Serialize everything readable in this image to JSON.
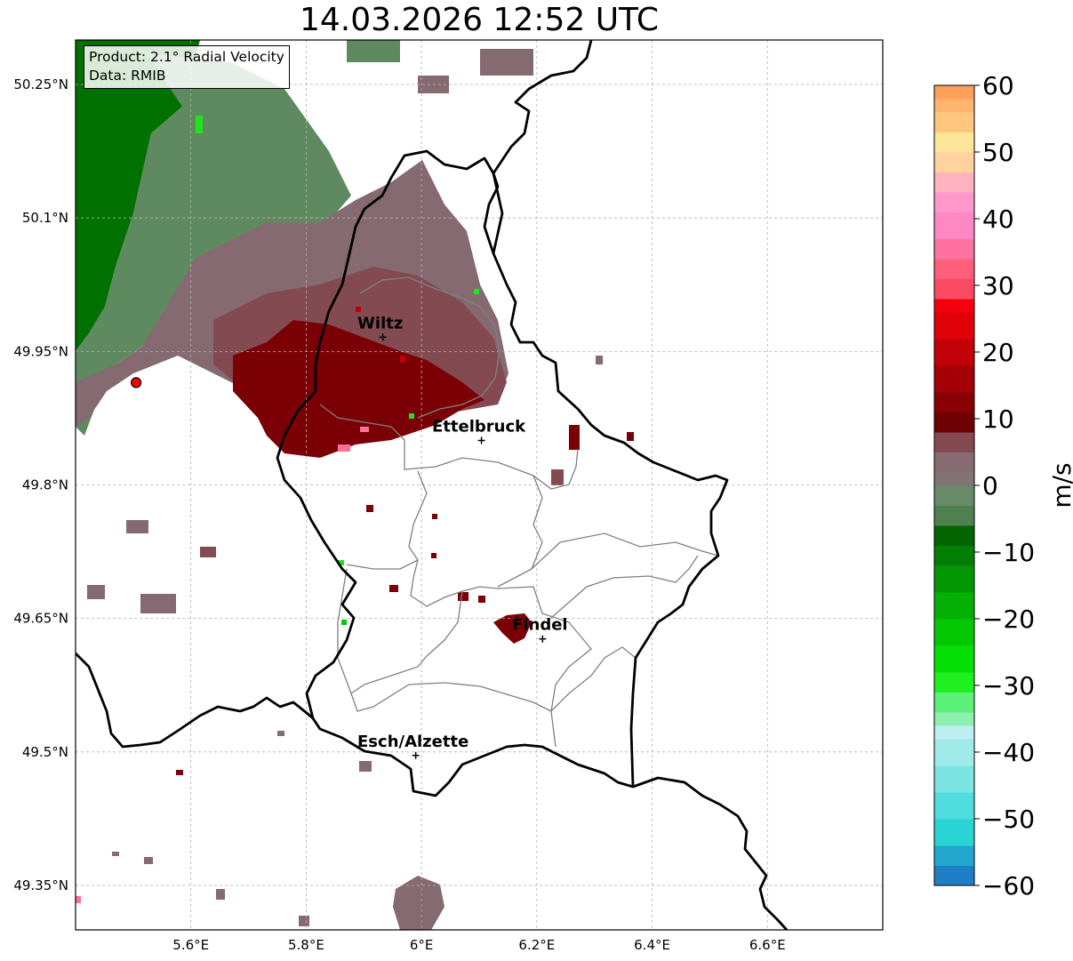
{
  "title": "14.03.2026 12:52 UTC",
  "info": {
    "product": "Product: 2.1° Radial Velocity",
    "source": "Data: RMIB"
  },
  "map": {
    "lon_range": [
      5.4,
      6.8
    ],
    "lat_range": [
      49.3,
      50.3
    ],
    "lon_ticks": [
      "5.6°E",
      "5.8°E",
      "6°E",
      "6.2°E",
      "6.4°E",
      "6.6°E"
    ],
    "lon_tick_values": [
      5.6,
      5.8,
      6.0,
      6.2,
      6.4,
      6.6
    ],
    "lat_ticks": [
      "50.25°N",
      "50.1°N",
      "49.95°N",
      "49.8°N",
      "49.65°N",
      "49.5°N",
      "49.35°N"
    ],
    "lat_tick_values": [
      50.25,
      50.1,
      49.95,
      49.8,
      49.65,
      49.5,
      49.35
    ],
    "radar_site": {
      "lon": 5.505,
      "lat": 49.915
    },
    "cities": [
      {
        "name": "Wiltz",
        "lon": 5.933,
        "lat": 49.966
      },
      {
        "name": "Ettelbruck",
        "lon": 6.104,
        "lat": 49.85
      },
      {
        "name": "Findel",
        "lon": 6.21,
        "lat": 49.627
      },
      {
        "name": "Esch/Alzette",
        "lon": 5.99,
        "lat": 49.496
      }
    ]
  },
  "colorbar": {
    "unit": "m/s",
    "min": -60,
    "max": 60,
    "tick_labels": [
      "60",
      "50",
      "40",
      "30",
      "20",
      "10",
      "0",
      "−10",
      "−20",
      "−30",
      "−40",
      "−50",
      "−60"
    ],
    "tick_values": [
      60,
      50,
      40,
      30,
      20,
      10,
      0,
      -10,
      -20,
      -30,
      -40,
      -50,
      -60
    ],
    "segments": [
      {
        "from": -60,
        "to": -57,
        "color": "#1e7fc6"
      },
      {
        "from": -57,
        "to": -54,
        "color": "#22a8cf"
      },
      {
        "from": -54,
        "to": -50,
        "color": "#2ad4d4"
      },
      {
        "from": -50,
        "to": -46,
        "color": "#4fdcdc"
      },
      {
        "from": -46,
        "to": -42,
        "color": "#7de4e4"
      },
      {
        "from": -42,
        "to": -38,
        "color": "#a0eaea"
      },
      {
        "from": -38,
        "to": -36,
        "color": "#bdeff0"
      },
      {
        "from": -36,
        "to": -34,
        "color": "#8ef0b0"
      },
      {
        "from": -34,
        "to": -31,
        "color": "#5cf27a"
      },
      {
        "from": -31,
        "to": -28,
        "color": "#20f020"
      },
      {
        "from": -28,
        "to": -24,
        "color": "#06e006"
      },
      {
        "from": -24,
        "to": -20,
        "color": "#05c805"
      },
      {
        "from": -20,
        "to": -16,
        "color": "#04b004"
      },
      {
        "from": -16,
        "to": -12,
        "color": "#039803"
      },
      {
        "from": -12,
        "to": -9,
        "color": "#027e02"
      },
      {
        "from": -9,
        "to": -6,
        "color": "#016401"
      },
      {
        "from": -6,
        "to": -3,
        "color": "#4f8150"
      },
      {
        "from": -3,
        "to": 0,
        "color": "#698a68"
      },
      {
        "from": 0,
        "to": 2,
        "color": "#827476"
      },
      {
        "from": 2,
        "to": 5,
        "color": "#876b72"
      },
      {
        "from": 5,
        "to": 8,
        "color": "#844a52"
      },
      {
        "from": 8,
        "to": 11,
        "color": "#6e0004"
      },
      {
        "from": 11,
        "to": 14,
        "color": "#880004"
      },
      {
        "from": 14,
        "to": 18,
        "color": "#a40006"
      },
      {
        "from": 18,
        "to": 22,
        "color": "#c20008"
      },
      {
        "from": 22,
        "to": 26,
        "color": "#e0000a"
      },
      {
        "from": 26,
        "to": 28,
        "color": "#f4000c"
      },
      {
        "from": 28,
        "to": 31,
        "color": "#fb4b63"
      },
      {
        "from": 31,
        "to": 34,
        "color": "#ff5f7a"
      },
      {
        "from": 34,
        "to": 37,
        "color": "#ff72a2"
      },
      {
        "from": 37,
        "to": 41,
        "color": "#ff88c4"
      },
      {
        "from": 41,
        "to": 44,
        "color": "#ff99cc"
      },
      {
        "from": 44,
        "to": 47,
        "color": "#ffb3bd"
      },
      {
        "from": 47,
        "to": 50,
        "color": "#ffd29e"
      },
      {
        "from": 50,
        "to": 53,
        "color": "#ffe59a"
      },
      {
        "from": 53,
        "to": 56,
        "color": "#ffc77e"
      },
      {
        "from": 56,
        "to": 58,
        "color": "#ffb470"
      },
      {
        "from": 58,
        "to": 60,
        "color": "#ff9f5a"
      }
    ]
  },
  "colors": {
    "green_dark": "#007000",
    "green_mid": "#5f8a5f",
    "mauve": "#856a72",
    "mauve_dark": "#844a52",
    "maroon": "#7a0005",
    "red": "#c00008",
    "pink": "#ff6f9a",
    "bright_green": "#22e022"
  }
}
